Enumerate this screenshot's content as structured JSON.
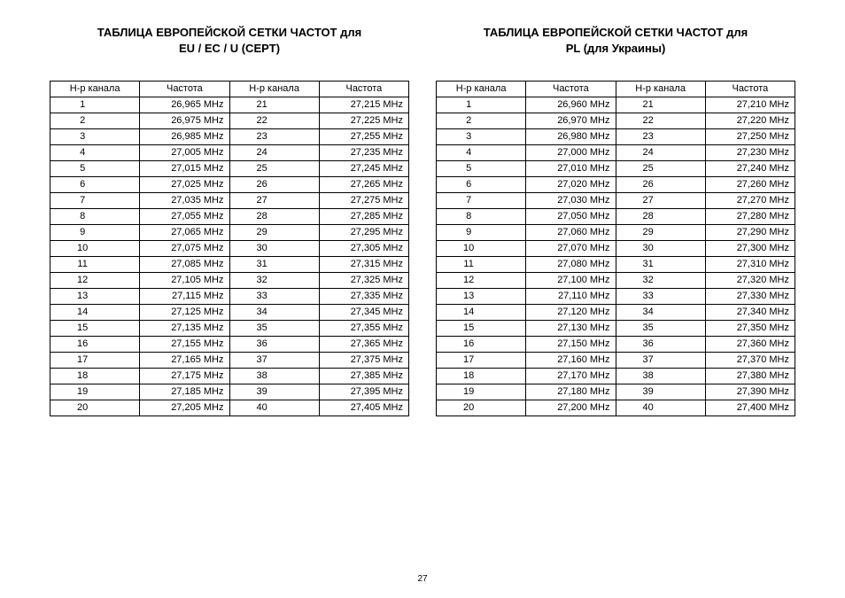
{
  "pageNumber": "27",
  "tables": [
    {
      "title": "ТАБЛИЦА ЕВРОПЕЙСКОЙ СЕТКИ ЧАСТОТ для\nEU / EC / U (CEPT)",
      "headers": [
        "Н-р канала",
        "Частота",
        "Н-р канала",
        "Частота"
      ],
      "rows": [
        [
          "1",
          "26,965 MHz",
          "21",
          "27,215 MHz"
        ],
        [
          "2",
          "26,975 MHz",
          "22",
          "27,225 MHz"
        ],
        [
          "3",
          "26,985 MHz",
          "23",
          "27,255 MHz"
        ],
        [
          "4",
          "27,005 MHz",
          "24",
          "27,235 MHz"
        ],
        [
          "5",
          "27,015 MHz",
          "25",
          "27,245 MHz"
        ],
        [
          "6",
          "27,025 MHz",
          "26",
          "27,265 MHz"
        ],
        [
          "7",
          "27,035 MHz",
          "27",
          "27,275 MHz"
        ],
        [
          "8",
          "27,055 MHz",
          "28",
          "27,285 MHz"
        ],
        [
          "9",
          "27,065 MHz",
          "29",
          "27,295 MHz"
        ],
        [
          "10",
          "27,075 MHz",
          "30",
          "27,305 MHz"
        ],
        [
          "11",
          "27,085 MHz",
          "31",
          "27,315 MHz"
        ],
        [
          "12",
          "27,105 MHz",
          "32",
          "27,325 MHz"
        ],
        [
          "13",
          "27,115 MHz",
          "33",
          "27,335 MHz"
        ],
        [
          "14",
          "27,125 MHz",
          "34",
          "27,345 MHz"
        ],
        [
          "15",
          "27,135 MHz",
          "35",
          "27,355 MHz"
        ],
        [
          "16",
          "27,155 MHz",
          "36",
          "27,365 MHz"
        ],
        [
          "17",
          "27,165 MHz",
          "37",
          "27,375 MHz"
        ],
        [
          "18",
          "27,175 MHz",
          "38",
          "27,385 MHz"
        ],
        [
          "19",
          "27,185 MHz",
          "39",
          "27,395 MHz"
        ],
        [
          "20",
          "27,205 MHz",
          "40",
          "27,405 MHz"
        ]
      ]
    },
    {
      "title": "ТАБЛИЦА ЕВРОПЕЙСКОЙ СЕТКИ ЧАСТОТ для\nPL (для Украины)",
      "headers": [
        "Н-р канала",
        "Частота",
        "Н-р канала",
        "Частота"
      ],
      "rows": [
        [
          "1",
          "26,960 MHz",
          "21",
          "27,210 MHz"
        ],
        [
          "2",
          "26,970 MHz",
          "22",
          "27,220 MHz"
        ],
        [
          "3",
          "26,980 MHz",
          "23",
          "27,250 MHz"
        ],
        [
          "4",
          "27,000 MHz",
          "24",
          "27,230 MHz"
        ],
        [
          "5",
          "27,010 MHz",
          "25",
          "27,240 MHz"
        ],
        [
          "6",
          "27,020 MHz",
          "26",
          "27,260 MHz"
        ],
        [
          "7",
          "27,030 MHz",
          "27",
          "27,270 MHz"
        ],
        [
          "8",
          "27,050 MHz",
          "28",
          "27,280 MHz"
        ],
        [
          "9",
          "27,060 MHz",
          "29",
          "27,290 MHz"
        ],
        [
          "10",
          "27,070 MHz",
          "30",
          "27,300 MHz"
        ],
        [
          "11",
          "27,080 MHz",
          "31",
          "27,310 MHz"
        ],
        [
          "12",
          "27,100 MHz",
          "32",
          "27,320 MHz"
        ],
        [
          "13",
          "27,110 MHz",
          "33",
          "27,330 MHz"
        ],
        [
          "14",
          "27,120 MHz",
          "34",
          "27,340 MHz"
        ],
        [
          "15",
          "27,130 MHz",
          "35",
          "27,350 MHz"
        ],
        [
          "16",
          "27,150 MHz",
          "36",
          "27,360 MHz"
        ],
        [
          "17",
          "27,160 MHz",
          "37",
          "27,370 MHz"
        ],
        [
          "18",
          "27,170 MHz",
          "38",
          "27,380 MHz"
        ],
        [
          "19",
          "27,180 MHz",
          "39",
          "27,390 MHz"
        ],
        [
          "20",
          "27,200 MHz",
          "40",
          "27,400 MHz"
        ]
      ]
    }
  ]
}
